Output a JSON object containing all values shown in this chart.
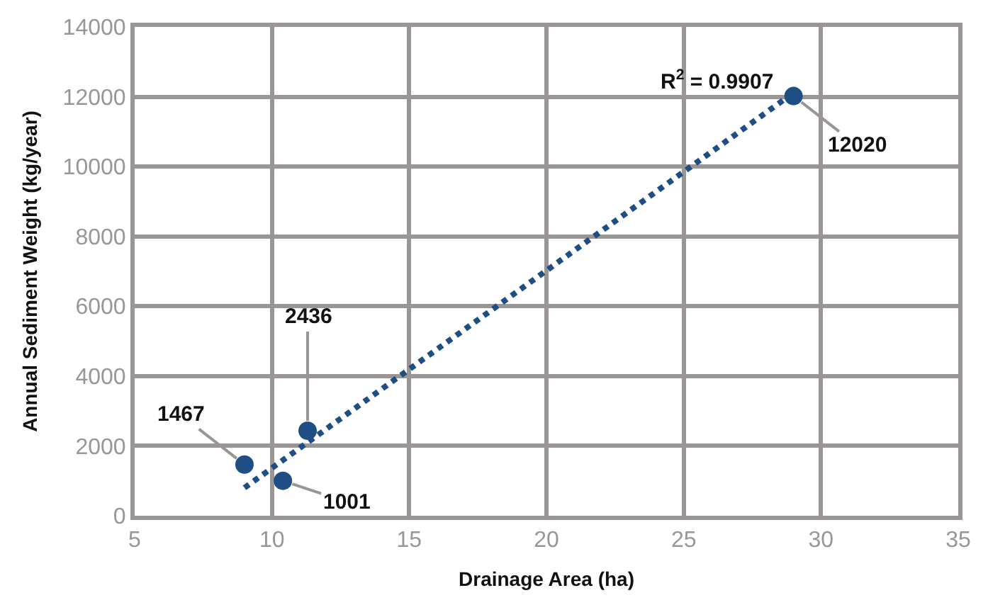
{
  "chart_data": {
    "type": "scatter",
    "xlabel": "Drainage Area (ha)",
    "ylabel": "Annual Sediment Weight (kg/year)",
    "xlim": [
      5,
      35
    ],
    "xticks": [
      5,
      10,
      15,
      20,
      25,
      30,
      35
    ],
    "ylim": [
      0,
      14000
    ],
    "yticks": [
      0,
      2000,
      4000,
      6000,
      8000,
      10000,
      12000,
      14000
    ],
    "grid": true,
    "marker": "circle",
    "series": [
      {
        "color": "#1f4e85",
        "x": [
          9.0,
          10.4,
          11.3,
          29.0
        ],
        "values": [
          1467,
          1001,
          2436,
          12020
        ],
        "value_labels": [
          "1467",
          "1001",
          "2436",
          "12020"
        ]
      },
      {
        "type": "line",
        "marker": "none",
        "color": "#1f4e85",
        "line_style": "dotted",
        "x": [
          9.0,
          28.8
        ],
        "values": [
          800,
          12000
        ]
      }
    ],
    "annotations": [
      {
        "text": "R$^{2}$ = 0.9907",
        "x": 28.8,
        "y": 12000
      }
    ]
  }
}
